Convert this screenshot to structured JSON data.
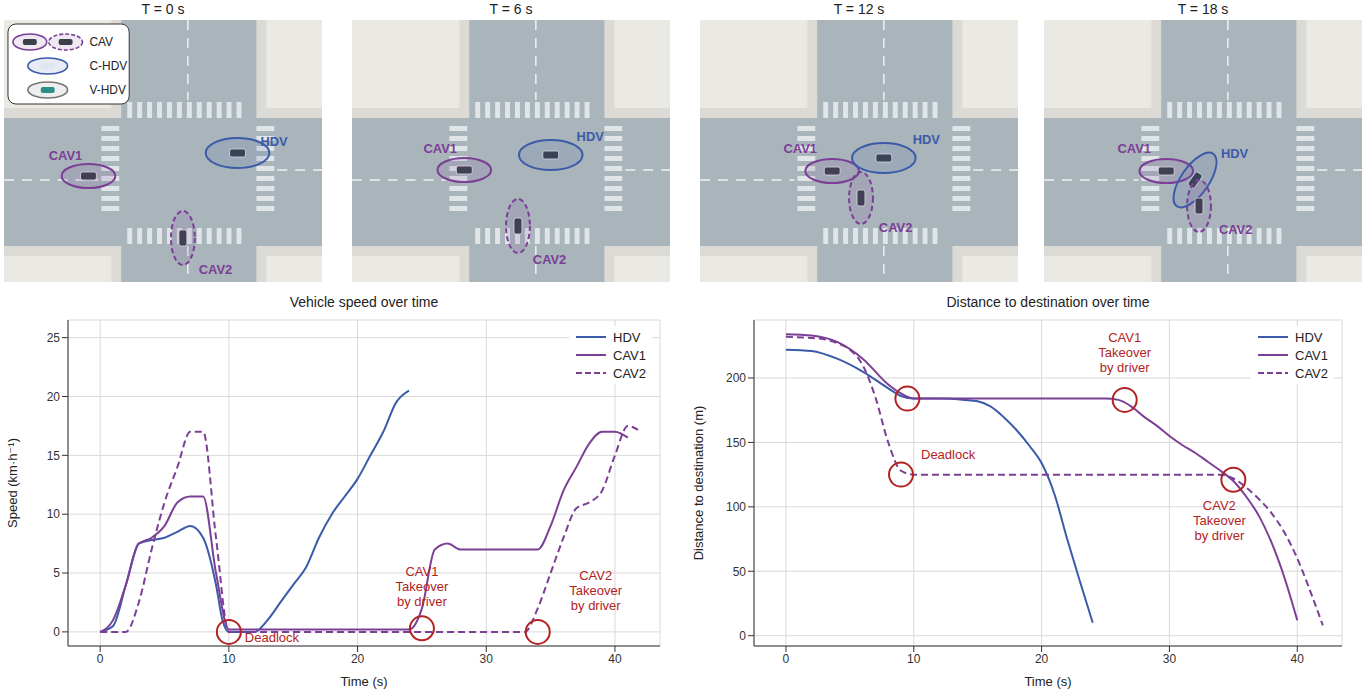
{
  "scenes": [
    {
      "title": "T = 0 s"
    },
    {
      "title": "T = 6 s"
    },
    {
      "title": "T = 12 s"
    },
    {
      "title": "T = 18 s"
    }
  ],
  "scene_legend": [
    {
      "label": "CAV",
      "color": "#7b3f96",
      "line_style": "solid"
    },
    {
      "label": "C-HDV",
      "color": "#3b5ba9",
      "line_style": "solid"
    },
    {
      "label": "V-HDV",
      "color": "#777777",
      "line_style": "solid"
    }
  ],
  "vehicles": [
    {
      "name": "CAV1",
      "color": "#7b3f96",
      "line_style": "solid"
    },
    {
      "name": "HDV",
      "color": "#3b5ba9",
      "line_style": "solid"
    },
    {
      "name": "CAV2",
      "color": "#7b3f96",
      "line_style": "dashed"
    }
  ],
  "chart_data": [
    {
      "type": "line",
      "title": "Vehicle speed over time",
      "x_label": "Time (s)",
      "y_label": "Speed (km·h⁻¹)",
      "xlim": [
        -2.5,
        43.5
      ],
      "xticks": [
        0,
        10,
        20,
        30,
        40
      ],
      "ylim": [
        -1.2,
        26.5
      ],
      "yticks": [
        0,
        5,
        10,
        15,
        20,
        25
      ],
      "grid": true,
      "legend": "upper right",
      "series": [
        {
          "name": "HDV",
          "color": "#3b5ba9",
          "line_style": "solid",
          "x": [
            0,
            1,
            2,
            3,
            4,
            5,
            6,
            7,
            8,
            9,
            9.5,
            10,
            11,
            12,
            13,
            14,
            15,
            16,
            17,
            18,
            19,
            20,
            21,
            22,
            23,
            24
          ],
          "values": [
            0,
            0.5,
            4,
            7.5,
            7.8,
            8,
            8.5,
            9,
            8,
            4,
            1,
            0,
            0,
            0,
            1,
            2.5,
            4,
            5.5,
            8,
            10,
            11.5,
            13,
            15,
            17,
            19.5,
            20.5
          ]
        },
        {
          "name": "CAV1",
          "color": "#7b3f96",
          "line_style": "solid",
          "x": [
            0,
            1,
            2,
            3,
            4,
            5,
            6,
            7,
            8,
            9,
            10,
            11,
            12,
            13,
            14,
            15,
            16,
            17,
            18,
            19,
            20,
            21,
            22,
            23,
            24,
            25,
            26,
            27,
            28,
            29,
            30,
            31,
            32,
            33,
            34,
            35,
            36,
            37,
            38,
            39,
            40,
            41
          ],
          "values": [
            0,
            1,
            4,
            7.5,
            8,
            9,
            11,
            11.5,
            11.5,
            5,
            0.2,
            0.2,
            0.2,
            0.2,
            0.2,
            0.2,
            0.2,
            0.2,
            0.2,
            0.2,
            0.2,
            0.2,
            0.2,
            0.2,
            0.2,
            2,
            7,
            7.5,
            7,
            7,
            7,
            7,
            7,
            7,
            7,
            9,
            12,
            14,
            16,
            17,
            17,
            16.5
          ]
        },
        {
          "name": "CAV2",
          "color": "#7b3f96",
          "line_style": "dashed",
          "x": [
            0,
            1,
            2,
            3,
            4,
            5,
            6,
            7,
            8,
            9,
            10,
            11,
            12,
            13,
            14,
            15,
            16,
            17,
            18,
            19,
            20,
            21,
            22,
            23,
            24,
            25,
            26,
            27,
            28,
            29,
            30,
            31,
            32,
            33,
            34,
            35,
            36,
            37,
            38,
            39,
            40,
            41,
            42
          ],
          "values": [
            0,
            0,
            0,
            2.5,
            7,
            11,
            14,
            17,
            17,
            8,
            0,
            0,
            0,
            0,
            0,
            0,
            0,
            0,
            0,
            0,
            0,
            0,
            0,
            0,
            0,
            0,
            0,
            0,
            0,
            0,
            0,
            0,
            0,
            0,
            2,
            5,
            8,
            10.5,
            11,
            12,
            15,
            17.5,
            17
          ]
        }
      ],
      "annotations": [
        {
          "text_lines": [
            "Deadlock"
          ],
          "points": [
            {
              "x": 10,
              "y": 0
            }
          ]
        },
        {
          "text_lines": [
            "CAV1",
            "Takeover",
            "by driver"
          ],
          "points": [
            {
              "x": 25,
              "y": 0.3
            }
          ]
        },
        {
          "text_lines": [
            "CAV2",
            "Takeover",
            "by driver"
          ],
          "points": [
            {
              "x": 34,
              "y": 0
            }
          ]
        }
      ]
    },
    {
      "type": "line",
      "title": "Distance to destination over time",
      "x_label": "Time (s)",
      "y_label": "Distance to destination (m)",
      "xlim": [
        -2.5,
        43.5
      ],
      "xticks": [
        0,
        10,
        20,
        30,
        40
      ],
      "ylim": [
        -8,
        245
      ],
      "yticks": [
        0,
        50,
        100,
        150,
        200
      ],
      "grid": true,
      "legend": "upper right",
      "series": [
        {
          "name": "HDV",
          "color": "#3b5ba9",
          "line_style": "solid",
          "x": [
            0,
            2,
            4,
            6,
            8,
            9,
            10,
            12,
            14,
            15,
            16,
            17,
            18,
            19,
            20,
            21,
            22,
            23,
            24
          ],
          "values": [
            222,
            221,
            215,
            205,
            192,
            186,
            184,
            184,
            183,
            182,
            178,
            170,
            160,
            148,
            134,
            110,
            75,
            42,
            10
          ]
        },
        {
          "name": "CAV1",
          "color": "#7b3f96",
          "line_style": "solid",
          "x": [
            0,
            2,
            4,
            6,
            8,
            9,
            10,
            15,
            20,
            25,
            26,
            27,
            28,
            29,
            30,
            31,
            32,
            33,
            34,
            35,
            36,
            37,
            38,
            39,
            40
          ],
          "values": [
            234,
            233,
            228,
            215,
            195,
            188,
            184,
            184,
            184,
            184,
            183,
            178,
            170,
            163,
            155,
            148,
            142,
            135,
            128,
            120,
            108,
            93,
            72,
            45,
            12
          ]
        },
        {
          "name": "CAV2",
          "color": "#7b3f96",
          "line_style": "dashed",
          "x": [
            0,
            2,
            3,
            4,
            5,
            6,
            7,
            8,
            9,
            10,
            15,
            20,
            25,
            30,
            34,
            35,
            36,
            37,
            38,
            39,
            40,
            41,
            42
          ],
          "values": [
            232,
            231,
            230,
            227,
            222,
            210,
            185,
            150,
            128,
            125,
            125,
            125,
            125,
            125,
            125,
            122,
            115,
            106,
            95,
            80,
            60,
            35,
            8
          ]
        }
      ],
      "annotations": [
        {
          "text_lines": [
            "Deadlock"
          ],
          "points": [
            {
              "x": 9.5,
              "y": 184
            },
            {
              "x": 9,
              "y": 125
            }
          ]
        },
        {
          "text_lines": [
            "CAV1",
            "Takeover",
            "by driver"
          ],
          "points": [
            {
              "x": 26.5,
              "y": 183
            }
          ]
        },
        {
          "text_lines": [
            "CAV2",
            "Takeover",
            "by driver"
          ],
          "points": [
            {
              "x": 35,
              "y": 121
            }
          ]
        }
      ]
    }
  ]
}
